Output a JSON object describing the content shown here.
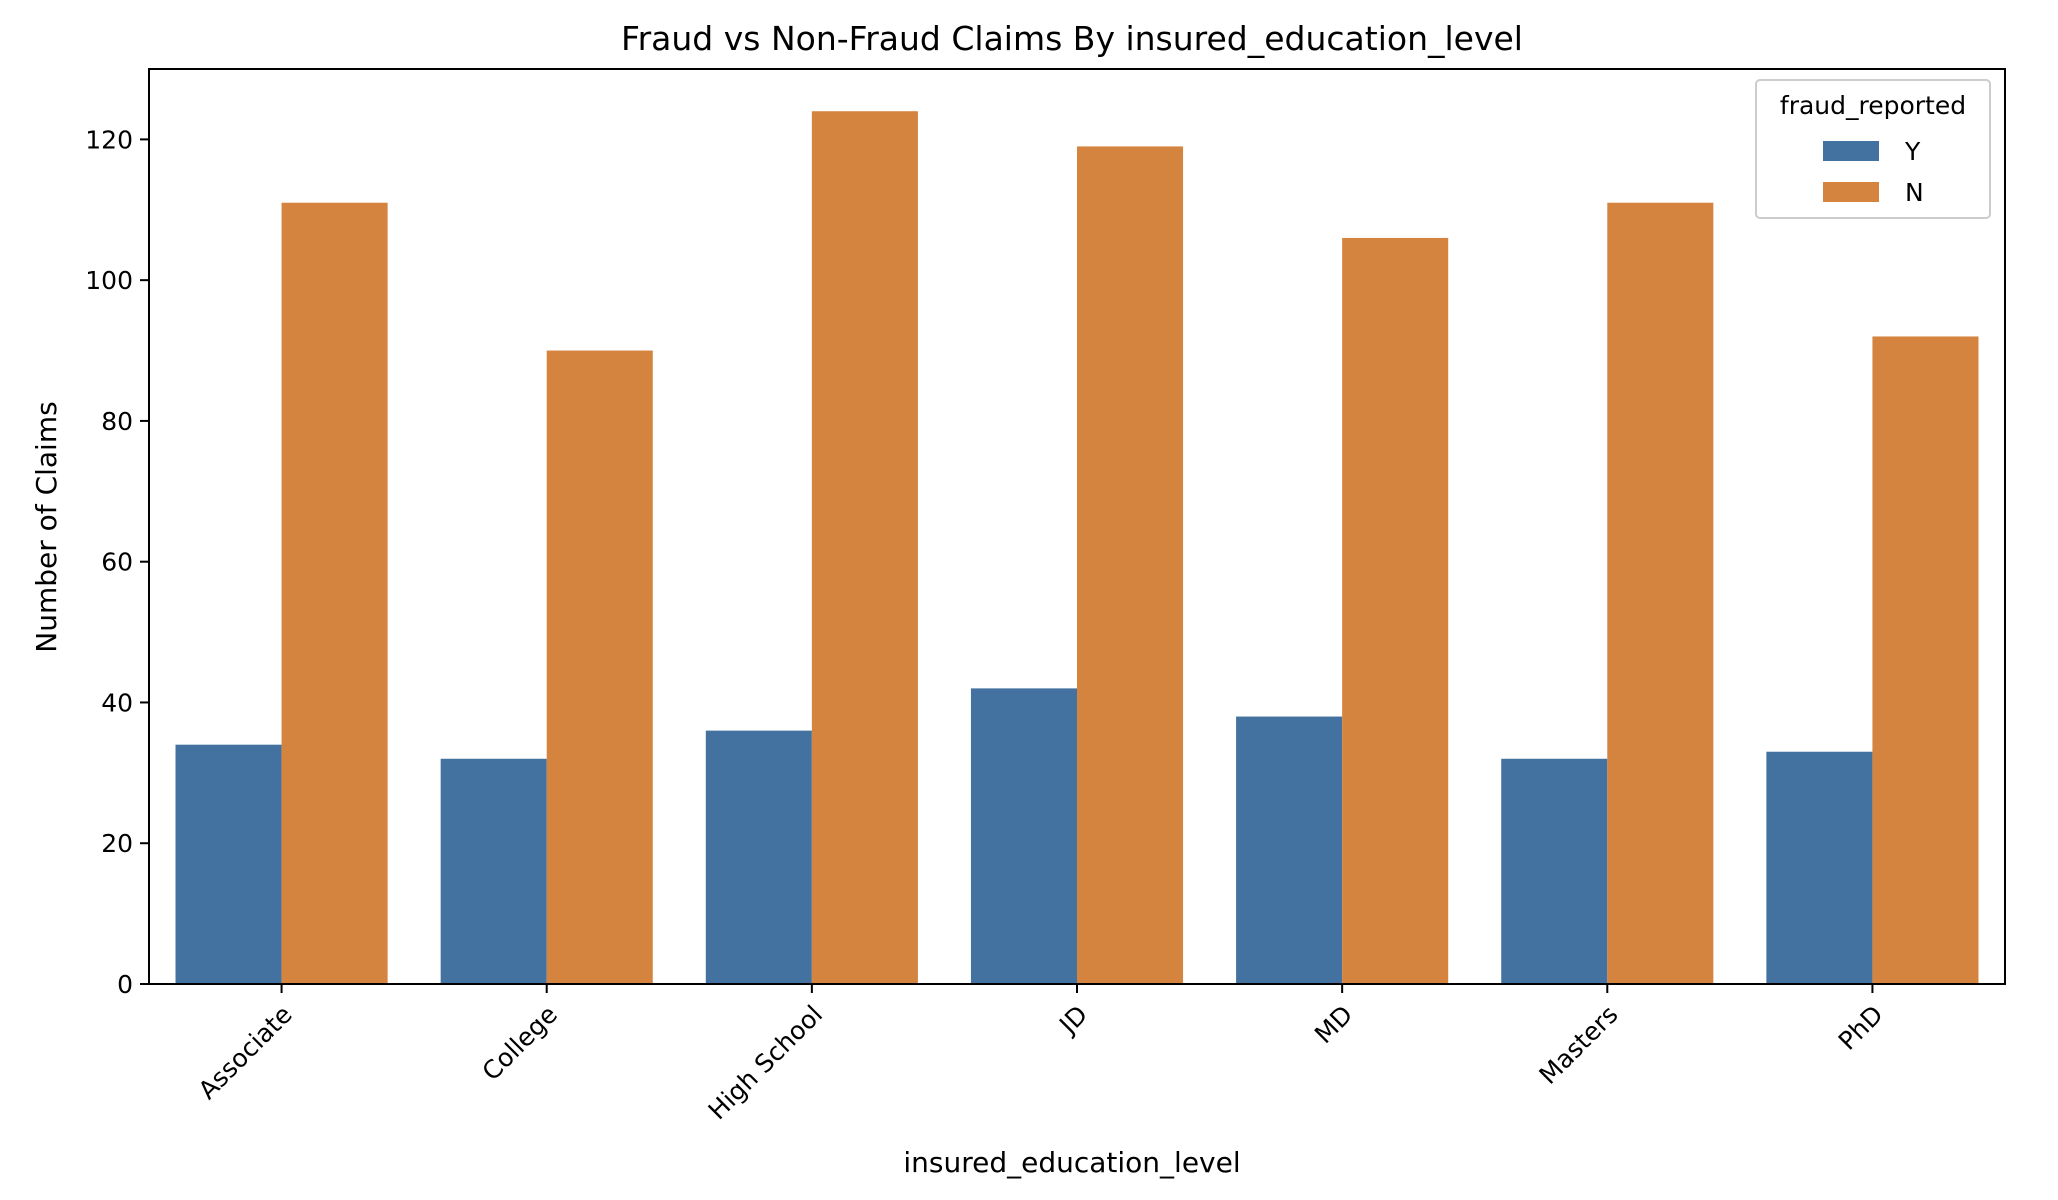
{
  "chart_data": {
    "type": "bar",
    "title": "Fraud vs Non-Fraud Claims By insured_education_level",
    "xlabel": "insured_education_level",
    "ylabel": "Number of Claims",
    "categories": [
      "Associate",
      "College",
      "High School",
      "JD",
      "MD",
      "Masters",
      "PhD"
    ],
    "series": [
      {
        "name": "Y",
        "color": "#4472a0",
        "values": [
          34,
          32,
          36,
          42,
          38,
          32,
          33
        ]
      },
      {
        "name": "N",
        "color": "#d4843e",
        "values": [
          111,
          90,
          124,
          119,
          106,
          111,
          92
        ]
      }
    ],
    "ylim": [
      0,
      130
    ],
    "yticks": [
      0,
      20,
      40,
      60,
      80,
      100,
      120
    ],
    "legend": {
      "title": "fraud_reported",
      "placement": "top-right"
    },
    "grid": false
  }
}
